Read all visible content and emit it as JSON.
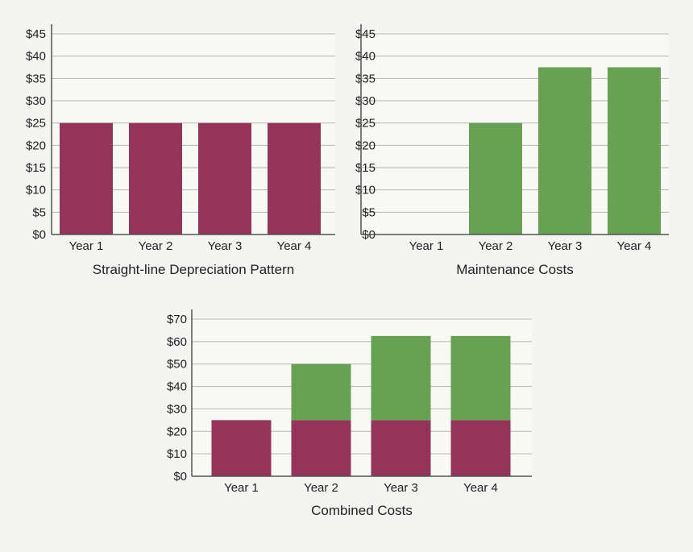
{
  "colors": {
    "depreciation": "#933458",
    "maintenance": "#68a153",
    "plot_bg": "#f8f8f5",
    "grid": "#b5b5b5",
    "axis": "#555555"
  },
  "chart_data": [
    {
      "id": "depreciation",
      "type": "bar",
      "title": "Straight-line Depreciation Pattern",
      "categories": [
        "Year 1",
        "Year 2",
        "Year 3",
        "Year 4"
      ],
      "series": [
        {
          "values": [
            25,
            25,
            25,
            25
          ],
          "color": "#933458"
        }
      ],
      "yticks": [
        "$0",
        "$5",
        "$10",
        "$15",
        "$20",
        "$25",
        "$30",
        "$35",
        "$40",
        "$45"
      ],
      "ytick_values": [
        0,
        5,
        10,
        15,
        20,
        25,
        30,
        35,
        40,
        45
      ],
      "ylim": [
        0,
        45
      ],
      "grid": true,
      "xlabel": "",
      "ylabel": ""
    },
    {
      "id": "maintenance",
      "type": "bar",
      "title": "Maintenance Costs",
      "categories": [
        "Year 1",
        "Year 2",
        "Year 3",
        "Year 4"
      ],
      "series": [
        {
          "values": [
            0,
            25,
            37.5,
            37.5
          ],
          "color": "#68a153"
        }
      ],
      "yticks": [
        "$0",
        "$5",
        "$10",
        "$15",
        "$20",
        "$25",
        "$30",
        "$35",
        "$40",
        "$45"
      ],
      "ytick_values": [
        0,
        5,
        10,
        15,
        20,
        25,
        30,
        35,
        40,
        45
      ],
      "ylim": [
        0,
        45
      ],
      "grid": true,
      "xlabel": "",
      "ylabel": ""
    },
    {
      "id": "combined",
      "type": "bar",
      "stacked": true,
      "title": "Combined Costs",
      "categories": [
        "Year 1",
        "Year 2",
        "Year 3",
        "Year 4"
      ],
      "series": [
        {
          "values": [
            25,
            25,
            25,
            25
          ],
          "color": "#933458"
        },
        {
          "values": [
            0,
            25,
            37.5,
            37.5
          ],
          "color": "#68a153"
        }
      ],
      "yticks": [
        "$0",
        "$10",
        "$20",
        "$30",
        "$40",
        "$50",
        "$60",
        "$70"
      ],
      "ytick_values": [
        0,
        10,
        20,
        30,
        40,
        50,
        60,
        70
      ],
      "ylim": [
        0,
        70
      ],
      "grid": true,
      "xlabel": "",
      "ylabel": ""
    }
  ]
}
